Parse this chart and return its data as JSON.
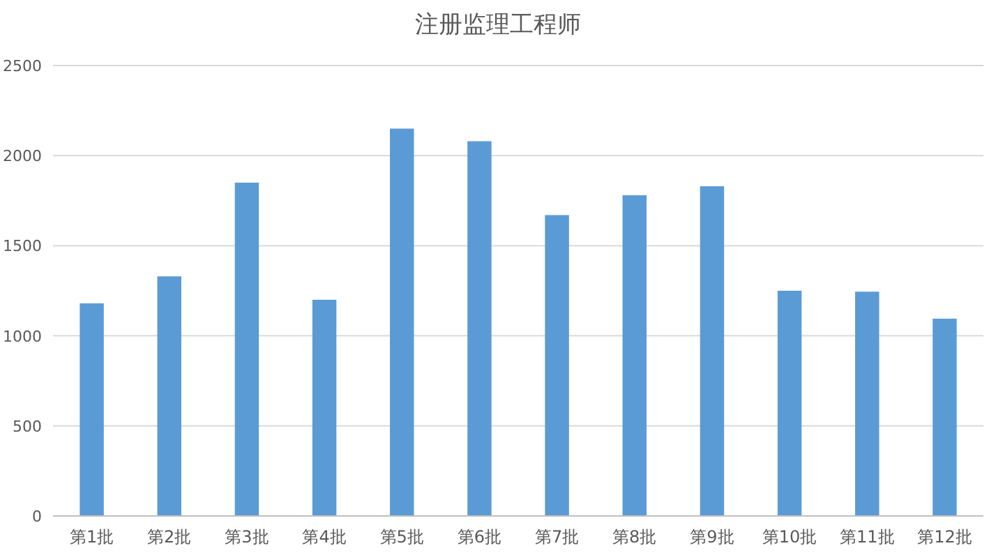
{
  "chart_data": {
    "type": "bar",
    "title": "注册监理工程师",
    "categories": [
      "第1批",
      "第2批",
      "第3批",
      "第4批",
      "第5批",
      "第6批",
      "第7批",
      "第8批",
      "第9批",
      "第10批",
      "第11批",
      "第12批"
    ],
    "values": [
      1180,
      1330,
      1850,
      1200,
      2150,
      2080,
      1670,
      1780,
      1830,
      1250,
      1245,
      1095
    ],
    "color": "#5b9bd5",
    "ylim": [
      0,
      2500
    ],
    "yticks": [
      0,
      500,
      1000,
      1500,
      2000,
      2500
    ],
    "grid": "y"
  }
}
